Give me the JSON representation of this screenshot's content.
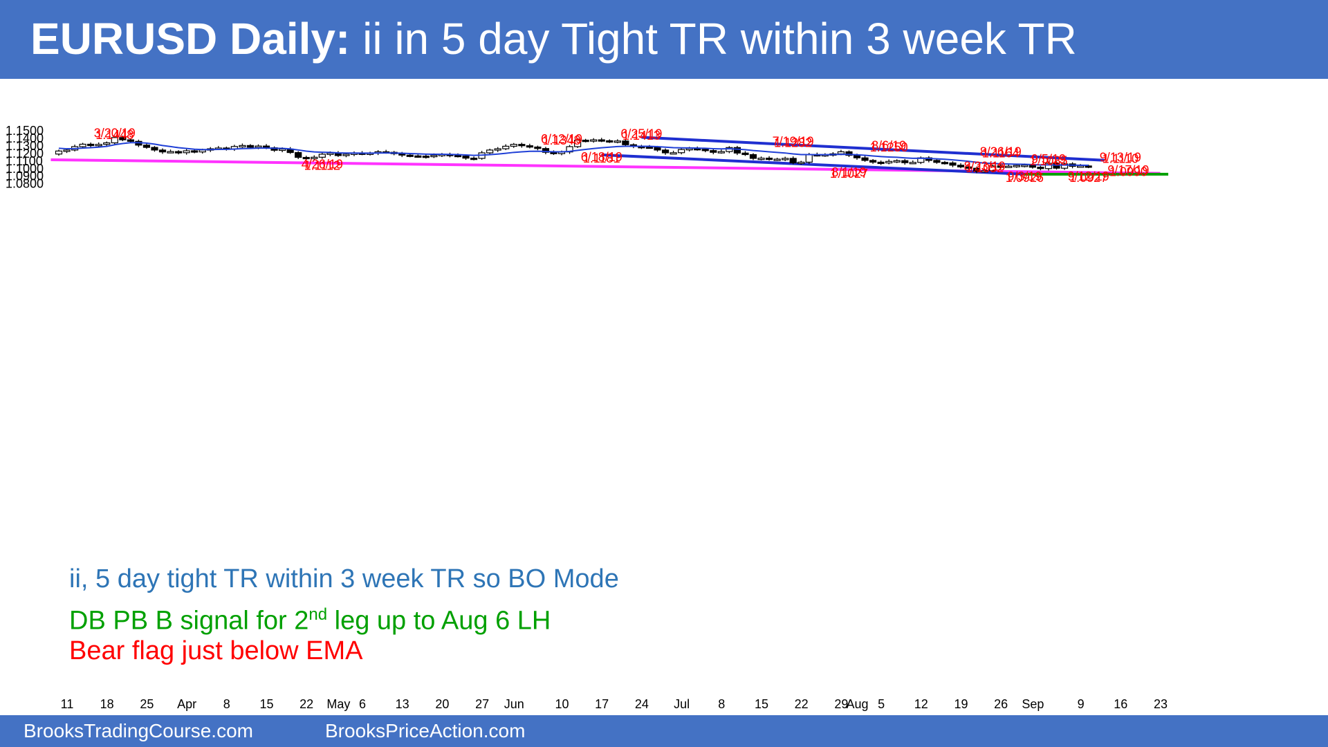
{
  "title": {
    "bold": "EURUSD Daily:",
    "rest": " ii in 5 day Tight TR within 3 week TR"
  },
  "footer": {
    "left": "BrooksTradingCourse.com",
    "right": "BrooksPriceAction.com"
  },
  "notes": {
    "line1": "ii, 5 day tight TR within 3 week TR so BO Mode",
    "line2_pre": "DB PB B signal for 2",
    "line2_sup": "nd",
    "line2_post": " leg up to Aug 6 LH",
    "line3": "Bear flag just below EMA"
  },
  "colors": {
    "header": "#4472C4",
    "ema": "#1F3FD6",
    "channel": "#1F2FD0",
    "trendline": "#FF33FF",
    "support": "#00A000",
    "label": "#FF0000"
  },
  "chart_data": {
    "type": "candlestick",
    "title": "EURUSD Daily: ii in 5 day Tight TR within 3 week TR",
    "ylim": [
      1.0775,
      1.151
    ],
    "y_ticks": [
      "1.1500",
      "1.1400",
      "1.1300",
      "1.1200",
      "1.1100",
      "1.1000",
      "1.0900",
      "1.0800"
    ],
    "x_ticks": [
      {
        "label": "11",
        "i": 0
      },
      {
        "label": "18",
        "i": 5
      },
      {
        "label": "25",
        "i": 10
      },
      {
        "label": "Apr",
        "i": 15
      },
      {
        "label": "8",
        "i": 20
      },
      {
        "label": "15",
        "i": 25
      },
      {
        "label": "22",
        "i": 30
      },
      {
        "label": "May",
        "i": 34
      },
      {
        "label": "6",
        "i": 37
      },
      {
        "label": "13",
        "i": 42
      },
      {
        "label": "20",
        "i": 47
      },
      {
        "label": "27",
        "i": 52
      },
      {
        "label": "Jun",
        "i": 56
      },
      {
        "label": "10",
        "i": 62
      },
      {
        "label": "17",
        "i": 67
      },
      {
        "label": "24",
        "i": 72
      },
      {
        "label": "Jul",
        "i": 77
      },
      {
        "label": "8",
        "i": 82
      },
      {
        "label": "15",
        "i": 87
      },
      {
        "label": "22",
        "i": 92
      },
      {
        "label": "29",
        "i": 97
      },
      {
        "label": "Aug",
        "i": 99
      },
      {
        "label": "5",
        "i": 102
      },
      {
        "label": "12",
        "i": 107
      },
      {
        "label": "19",
        "i": 112
      },
      {
        "label": "26",
        "i": 117
      },
      {
        "label": "Sep",
        "i": 121
      },
      {
        "label": "9",
        "i": 127
      },
      {
        "label": "16",
        "i": 132
      },
      {
        "label": "23",
        "i": 137
      }
    ],
    "closes": [
      1.1232,
      1.1245,
      1.129,
      1.1322,
      1.1305,
      1.132,
      1.134,
      1.141,
      1.138,
      1.136,
      1.131,
      1.128,
      1.1245,
      1.122,
      1.1225,
      1.121,
      1.1235,
      1.122,
      1.1245,
      1.1262,
      1.1272,
      1.126,
      1.1292,
      1.1305,
      1.1282,
      1.1298,
      1.1275,
      1.1242,
      1.1258,
      1.1212,
      1.1148,
      1.1132,
      1.115,
      1.119,
      1.1205,
      1.1172,
      1.119,
      1.1205,
      1.1195,
      1.1205,
      1.1222,
      1.1215,
      1.1198,
      1.1178,
      1.1168,
      1.1165,
      1.1158,
      1.1175,
      1.1188,
      1.1175,
      1.1165,
      1.1138,
      1.1135,
      1.1208,
      1.1245,
      1.1262,
      1.1295,
      1.132,
      1.1302,
      1.1285,
      1.1265,
      1.1215,
      1.1198,
      1.122,
      1.129,
      1.1375,
      1.1368,
      1.138,
      1.1368,
      1.136,
      1.1365,
      1.1315,
      1.1292,
      1.1285,
      1.1282,
      1.1245,
      1.1208,
      1.121,
      1.1252,
      1.1265,
      1.1255,
      1.1238,
      1.1215,
      1.1225,
      1.1278,
      1.1205,
      1.1185,
      1.1135,
      1.1138,
      1.1122,
      1.1125,
      1.1135,
      1.1075,
      1.1085,
      1.1185,
      1.1178,
      1.1185,
      1.1195,
      1.1222,
      1.1175,
      1.1142,
      1.1108,
      1.1085,
      1.1075,
      1.1095,
      1.1105,
      1.1078,
      1.1082,
      1.1142,
      1.1108,
      1.1082,
      1.1075,
      1.1045,
      1.1022,
      1.1005,
      1.0965,
      1.0972,
      1.1035,
      1.1028,
      1.1032,
      1.1042,
      1.1045,
      1.1018,
      1.1,
      1.107,
      1.1005,
      1.1062,
      1.103,
      1.1035,
      1.1028
    ],
    "ema": [
      1.1268,
      1.1262,
      1.1264,
      1.1271,
      1.1276,
      1.1283,
      1.1293,
      1.1315,
      1.1331,
      1.1342,
      1.1342,
      1.1337,
      1.1323,
      1.1305,
      1.1291,
      1.1276,
      1.1266,
      1.1256,
      1.1251,
      1.1251,
      1.1253,
      1.1254,
      1.1258,
      1.1264,
      1.1266,
      1.127,
      1.1271,
      1.1268,
      1.1267,
      1.126,
      1.1246,
      1.1231,
      1.122,
      1.1216,
      1.1214,
      1.1208,
      1.1205,
      1.1205,
      1.1204,
      1.1204,
      1.1206,
      1.1207,
      1.1206,
      1.1203,
      1.1199,
      1.1195,
      1.1191,
      1.1189,
      1.1189,
      1.1187,
      1.1185,
      1.118,
      1.1175,
      1.1178,
      1.1184,
      1.1192,
      1.1202,
      1.1214,
      1.1222,
      1.1228,
      1.123,
      1.1226,
      1.1222,
      1.1221,
      1.1227,
      1.1241,
      1.1253,
      1.1265,
      1.1275,
      1.1283,
      1.1291,
      1.1294,
      1.1294,
      1.1294,
      1.1294,
      1.129,
      1.1283,
      1.1276,
      1.1274,
      1.1273,
      1.1271,
      1.1268,
      1.1263,
      1.126,
      1.1262,
      1.1257,
      1.125,
      1.1239,
      1.1231,
      1.1221,
      1.1213,
      1.1206,
      1.1194,
      1.1185,
      1.1185,
      1.1184,
      1.1184,
      1.1185,
      1.1188,
      1.1187,
      1.1183,
      1.1176,
      1.1167,
      1.1159,
      1.1153,
      1.1149,
      1.1142,
      1.1136,
      1.1137,
      1.1134,
      1.1129,
      1.1123,
      1.1115,
      1.1106,
      1.1096,
      1.1083,
      1.1072,
      1.1068,
      1.1063,
      1.106,
      1.1058,
      1.1057,
      1.1053,
      1.1048,
      1.105,
      1.1046,
      1.1048,
      1.1046,
      1.1045,
      1.1043
    ]
  },
  "annotations": [
    {
      "text": "3/20/19",
      "i": 7,
      "price": 1.1467
    },
    {
      "text": "1.1448",
      "i": 7,
      "price": 1.1447
    },
    {
      "text": "6/12/19",
      "i": 63,
      "price": 1.1392
    },
    {
      "text": "1.1348",
      "i": 63,
      "price": 1.1372
    },
    {
      "text": "6/25/19",
      "i": 73,
      "price": 1.1458
    },
    {
      "text": "1.1413",
      "i": 73,
      "price": 1.1438
    },
    {
      "text": "7/19/19",
      "i": 92,
      "price": 1.1358
    },
    {
      "text": "1.1282",
      "i": 92,
      "price": 1.1338
    },
    {
      "text": "8/6/19",
      "i": 104,
      "price": 1.1303
    },
    {
      "text": "1.1250",
      "i": 104,
      "price": 1.1283
    },
    {
      "text": "8/26/19",
      "i": 118,
      "price": 1.1221
    },
    {
      "text": "1.1164",
      "i": 118,
      "price": 1.1201
    },
    {
      "text": "9/13/19",
      "i": 133,
      "price": 1.1149
    },
    {
      "text": "1.1110",
      "i": 133,
      "price": 1.1129
    },
    {
      "text": "9/5/19",
      "i": 124,
      "price": 1.1124
    },
    {
      "text": "1.1085",
      "i": 124,
      "price": 1.1104
    },
    {
      "text": "6/18/19",
      "i": 68,
      "price": 1.1155
    },
    {
      "text": "1.1181",
      "i": 68,
      "price": 1.1135
    },
    {
      "text": "4/26/19",
      "i": 33,
      "price": 1.1058
    },
    {
      "text": "1.1112",
      "i": 33,
      "price": 1.1038
    },
    {
      "text": "8/1/19",
      "i": 99,
      "price": 1.0953
    },
    {
      "text": "1.1027",
      "i": 99,
      "price": 1.0933
    },
    {
      "text": "8/23/19",
      "i": 116,
      "price": 1.1028
    },
    {
      "text": "1.1052",
      "i": 116,
      "price": 1.1008
    },
    {
      "text": "9/17/19",
      "i": 134,
      "price": 1.0978
    },
    {
      "text": "1.0990",
      "i": 134,
      "price": 1.0958
    },
    {
      "text": "9/3/19",
      "i": 121,
      "price": 1.0897
    },
    {
      "text": "1.0926",
      "i": 121,
      "price": 1.0877
    },
    {
      "text": "9/12/19",
      "i": 129,
      "price": 1.0897
    },
    {
      "text": "1.0927",
      "i": 129,
      "price": 1.0877
    }
  ],
  "lines": {
    "channel_upper": [
      {
        "i": 73,
        "price": 1.1413
      },
      {
        "i": 131,
        "price": 1.111
      }
    ],
    "channel_lower": [
      {
        "i": 68,
        "price": 1.1181
      },
      {
        "i": 121,
        "price": 1.0926
      }
    ],
    "trendline": [
      {
        "i": -1,
        "price": 1.1117
      },
      {
        "i": 138,
        "price": 1.0937
      }
    ],
    "support": [
      {
        "i": 121,
        "price": 1.0926
      },
      {
        "i": 139,
        "price": 1.0926
      }
    ]
  }
}
